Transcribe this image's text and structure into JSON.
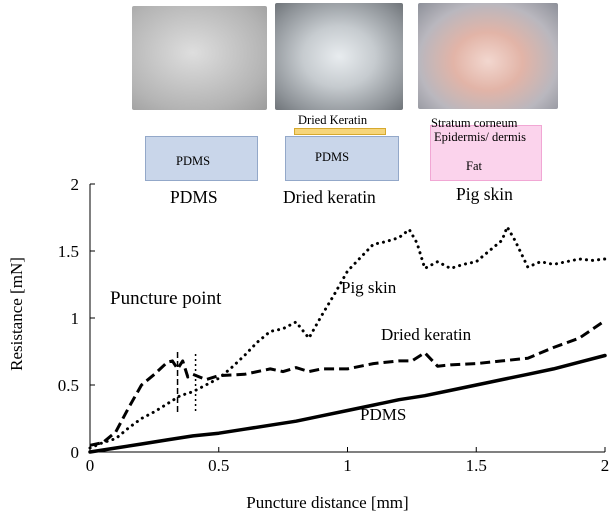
{
  "samples": {
    "pdms": {
      "name": "PDMS",
      "layer_label": "PDMS"
    },
    "keratin": {
      "name": "Dried keratin",
      "layer_top": "Dried Keratin",
      "layer_bottom": "PDMS"
    },
    "skin": {
      "name": "Pig skin",
      "layer_1": "Stratum corneum",
      "layer_2": "Epidermis/ dermis",
      "layer_3": "Fat"
    }
  },
  "colors": {
    "pdms_block": "#c9d6ea",
    "keratin_layer": "#f6d57a",
    "skin_block": "#fbd3ec"
  },
  "chart_data": {
    "type": "line",
    "title": "",
    "xlabel": "Puncture distance [mm]",
    "ylabel": "Resistance [mN]",
    "xlim": [
      0,
      2
    ],
    "ylim": [
      0,
      2
    ],
    "xticks": [
      0,
      0.5,
      1,
      1.5,
      2
    ],
    "xtick_labels": [
      "0",
      "0.5",
      "1",
      "1.5",
      "2"
    ],
    "yticks": [
      0,
      0.5,
      1,
      1.5,
      2
    ],
    "ytick_labels": [
      "0",
      "0.5",
      "1",
      "1.5",
      "2"
    ],
    "grid": false,
    "series": [
      {
        "name": "PDMS",
        "style": "solid",
        "x": [
          0,
          0.1,
          0.2,
          0.3,
          0.4,
          0.5,
          0.6,
          0.7,
          0.8,
          0.9,
          1.0,
          1.1,
          1.2,
          1.3,
          1.4,
          1.5,
          1.6,
          1.7,
          1.8,
          1.9,
          2.0
        ],
        "y": [
          0,
          0.03,
          0.06,
          0.09,
          0.12,
          0.14,
          0.17,
          0.2,
          0.23,
          0.27,
          0.31,
          0.35,
          0.39,
          0.42,
          0.46,
          0.5,
          0.54,
          0.58,
          0.62,
          0.67,
          0.72
        ]
      },
      {
        "name": "Dried keratin",
        "style": "dashed",
        "x": [
          0,
          0.05,
          0.1,
          0.15,
          0.2,
          0.25,
          0.3,
          0.32,
          0.34,
          0.36,
          0.38,
          0.4,
          0.45,
          0.5,
          0.6,
          0.7,
          0.75,
          0.8,
          0.85,
          0.9,
          1.0,
          1.1,
          1.2,
          1.25,
          1.3,
          1.35,
          1.4,
          1.5,
          1.6,
          1.7,
          1.8,
          1.9,
          2.0
        ],
        "y": [
          0.05,
          0.07,
          0.15,
          0.33,
          0.5,
          0.58,
          0.67,
          0.68,
          0.62,
          0.68,
          0.56,
          0.58,
          0.54,
          0.57,
          0.58,
          0.62,
          0.6,
          0.63,
          0.6,
          0.62,
          0.62,
          0.66,
          0.68,
          0.68,
          0.74,
          0.64,
          0.65,
          0.66,
          0.68,
          0.7,
          0.78,
          0.85,
          0.98
        ]
      },
      {
        "name": "Pig skin",
        "style": "dotted",
        "x": [
          0,
          0.05,
          0.1,
          0.15,
          0.2,
          0.25,
          0.3,
          0.35,
          0.4,
          0.45,
          0.5,
          0.55,
          0.6,
          0.65,
          0.7,
          0.75,
          0.8,
          0.85,
          0.9,
          0.95,
          1.0,
          1.05,
          1.1,
          1.15,
          1.2,
          1.24,
          1.27,
          1.3,
          1.35,
          1.4,
          1.45,
          1.5,
          1.55,
          1.6,
          1.62,
          1.65,
          1.7,
          1.75,
          1.8,
          1.85,
          1.9,
          1.95,
          2.0
        ],
        "y": [
          0.03,
          0.07,
          0.1,
          0.18,
          0.25,
          0.3,
          0.36,
          0.42,
          0.45,
          0.5,
          0.55,
          0.63,
          0.72,
          0.82,
          0.9,
          0.92,
          0.97,
          0.85,
          1.02,
          1.18,
          1.35,
          1.45,
          1.55,
          1.57,
          1.6,
          1.66,
          1.56,
          1.37,
          1.42,
          1.37,
          1.4,
          1.42,
          1.5,
          1.58,
          1.68,
          1.58,
          1.38,
          1.42,
          1.4,
          1.42,
          1.44,
          1.43,
          1.44
        ]
      }
    ],
    "annotations": {
      "puncture_point": "Puncture point",
      "puncture_keratin_x": 0.34,
      "puncture_skin_x": 0.41,
      "pig_skin_label": "Pig skin",
      "keratin_label": "Dried keratin",
      "pdms_label": "PDMS"
    }
  }
}
